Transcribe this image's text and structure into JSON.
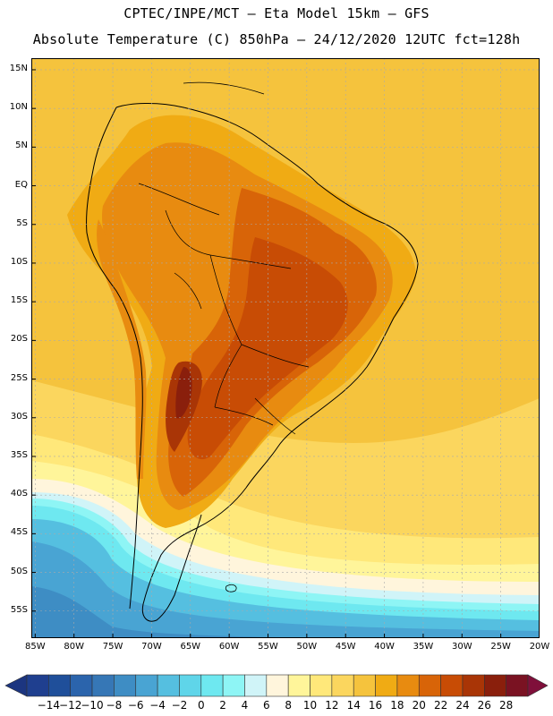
{
  "header": {
    "line1": "CPTEC/INPE/MCT –  Eta Model 15km – GFS",
    "line2": "Absolute Temperature (C) 850hPa – 24/12/2020 12UTC fct=128h"
  },
  "map": {
    "lat_labels": [
      "15N",
      "10N",
      "5N",
      "EQ",
      "5S",
      "10S",
      "15S",
      "20S",
      "25S",
      "30S",
      "35S",
      "40S",
      "45S",
      "50S",
      "55S"
    ],
    "lon_labels": [
      "85W",
      "80W",
      "75W",
      "70W",
      "65W",
      "60W",
      "55W",
      "50W",
      "45W",
      "40W",
      "35W",
      "30W",
      "25W",
      "20W"
    ],
    "lat_range": [
      16.5,
      -58.5
    ],
    "lon_range": [
      -85.5,
      -20.0
    ]
  },
  "colorbar": {
    "labels": [
      "-14",
      "-12",
      "-10",
      "-8",
      "-6",
      "-4",
      "-2",
      "0",
      "2",
      "4",
      "6",
      "8",
      "10",
      "12",
      "14",
      "16",
      "18",
      "20",
      "22",
      "24",
      "26",
      "28"
    ],
    "colors": [
      "#1f3f8f",
      "#1f4f9a",
      "#2b64ac",
      "#3677b6",
      "#3e8dc4",
      "#49a4d3",
      "#55bfe0",
      "#5fd5e9",
      "#6ee8f0",
      "#8ef5f5",
      "#d0f4f8",
      "#fff5dc",
      "#fff59a",
      "#ffe87a",
      "#fbd65e",
      "#f5c33d",
      "#f0ab14",
      "#e88b10",
      "#d86408",
      "#c84c05",
      "#a93506",
      "#8a1f0c",
      "#7a1222"
    ],
    "under_color": "#1c3580",
    "over_color": "#7f0f3a"
  }
}
